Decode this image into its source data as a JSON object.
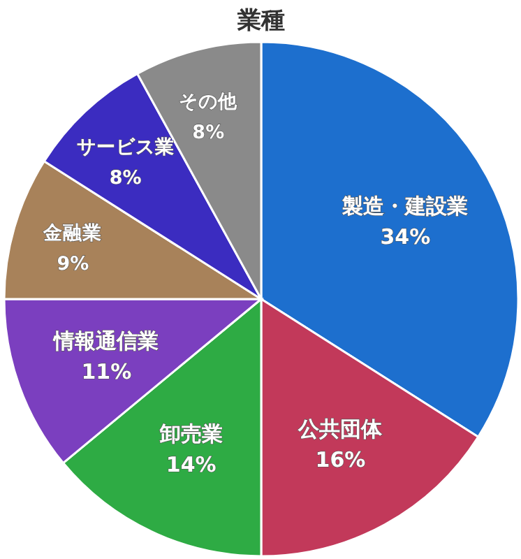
{
  "chart_data": {
    "type": "pie",
    "title": "業種",
    "categories": [
      "製造・建設業",
      "公共団体",
      "卸売業",
      "情報通信業",
      "金融業",
      "サービス業",
      "その他"
    ],
    "values": [
      34,
      16,
      14,
      11,
      9,
      8,
      8
    ],
    "value_labels": [
      "34%",
      "16%",
      "14%",
      "11%",
      "9%",
      "8%",
      "8%"
    ],
    "colors": [
      "#1d6fce",
      "#c2395a",
      "#2eab44",
      "#7b3fbf",
      "#a8825a",
      "#3b2cc0",
      "#8a8a8a"
    ]
  }
}
